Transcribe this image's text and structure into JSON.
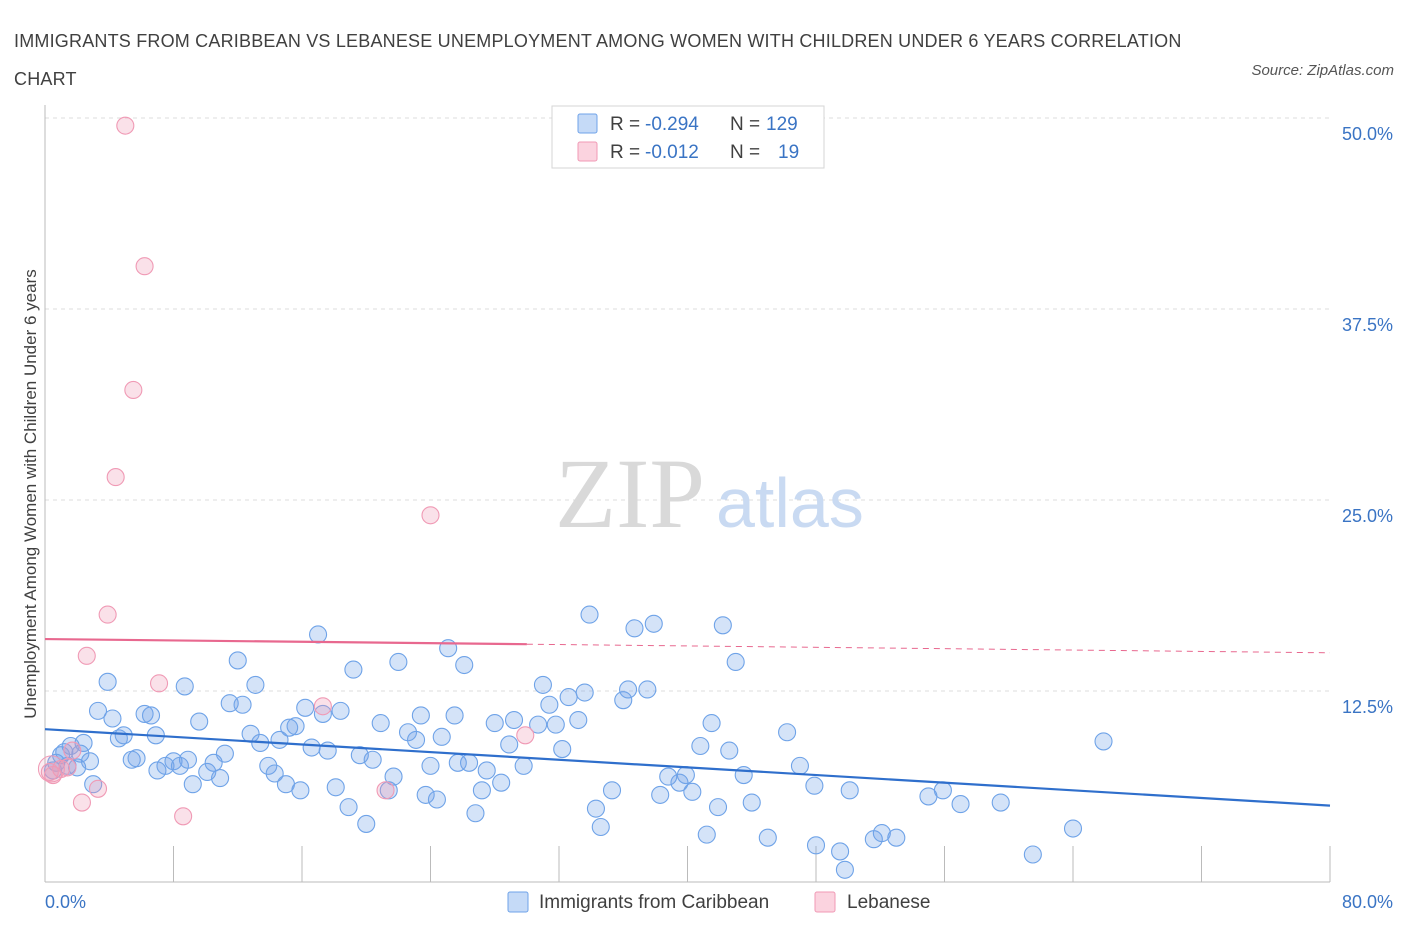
{
  "title": "IMMIGRANTS FROM CARIBBEAN VS LEBANESE UNEMPLOYMENT AMONG WOMEN WITH CHILDREN UNDER 6 YEARS CORRELATION CHART",
  "source": "Source: ZipAtlas.com",
  "watermark": {
    "zip": "ZIP",
    "atlas": "atlas"
  },
  "legend": {
    "rows": [
      {
        "r_label": "R = ",
        "r_value": "-0.294",
        "n_label": "N = ",
        "n_value": "129",
        "color": "#6fa3e8"
      },
      {
        "r_label": "R = ",
        "r_value": "-0.012",
        "n_label": "N = ",
        "n_value": "19",
        "color": "#f09ab5"
      }
    ]
  },
  "bottom_legend": [
    {
      "label": "Immigrants from Caribbean",
      "color": "#6fa3e8"
    },
    {
      "label": "Lebanese",
      "color": "#f09ab5"
    }
  ],
  "colors": {
    "blue": "#6fa3e8",
    "blue_line": "#2f6fcc",
    "pink": "#f09ab5",
    "pink_line": "#e8688f",
    "grid": "#dcdcdc",
    "axis_text": "#3a74c4"
  },
  "chart_data": {
    "type": "scatter",
    "title": "IMMIGRANTS FROM CARIBBEAN VS LEBANESE UNEMPLOYMENT AMONG WOMEN WITH CHILDREN UNDER 6 YEARS CORRELATION CHART",
    "xlabel": "",
    "ylabel": "Unemployment Among Women with Children Under 6 years",
    "xlim": [
      0,
      80
    ],
    "ylim": [
      0,
      50
    ],
    "x_tick_labels": [
      "0.0%",
      "80.0%"
    ],
    "y_ticks": [
      12.5,
      25.0,
      37.5,
      50.0
    ],
    "y_tick_labels": [
      "12.5%",
      "25.0%",
      "37.5%",
      "50.0%"
    ],
    "grid": "horizontal dashed",
    "legend_position": "top-center",
    "series": [
      {
        "name": "Immigrants from Caribbean",
        "color": "#6fa3e8",
        "trend": {
          "x": [
            0,
            80
          ],
          "y": [
            10.0,
            5.0
          ]
        },
        "points": [
          [
            0.5,
            7.3
          ],
          [
            0.7,
            7.8
          ],
          [
            1.0,
            8.3
          ],
          [
            1.2,
            8.5
          ],
          [
            1.4,
            7.6
          ],
          [
            1.6,
            8.9
          ],
          [
            2.0,
            7.5
          ],
          [
            2.2,
            8.4
          ],
          [
            2.4,
            9.1
          ],
          [
            2.8,
            7.9
          ],
          [
            3.0,
            6.4
          ],
          [
            3.3,
            11.2
          ],
          [
            3.9,
            13.1
          ],
          [
            4.2,
            10.7
          ],
          [
            4.6,
            9.4
          ],
          [
            4.9,
            9.6
          ],
          [
            5.4,
            8.0
          ],
          [
            5.7,
            8.1
          ],
          [
            6.2,
            11.0
          ],
          [
            6.6,
            10.9
          ],
          [
            6.9,
            9.6
          ],
          [
            7.0,
            7.3
          ],
          [
            7.5,
            7.6
          ],
          [
            8.0,
            7.9
          ],
          [
            8.4,
            7.6
          ],
          [
            8.7,
            12.8
          ],
          [
            8.9,
            8.0
          ],
          [
            9.2,
            6.4
          ],
          [
            9.6,
            10.5
          ],
          [
            10.1,
            7.2
          ],
          [
            10.5,
            7.8
          ],
          [
            10.9,
            6.8
          ],
          [
            11.2,
            8.4
          ],
          [
            11.5,
            11.7
          ],
          [
            12.0,
            14.5
          ],
          [
            12.3,
            11.6
          ],
          [
            12.8,
            9.7
          ],
          [
            13.1,
            12.9
          ],
          [
            13.4,
            9.1
          ],
          [
            13.9,
            7.6
          ],
          [
            14.3,
            7.1
          ],
          [
            14.6,
            9.3
          ],
          [
            15.0,
            6.4
          ],
          [
            15.2,
            10.1
          ],
          [
            15.6,
            10.2
          ],
          [
            15.9,
            6.0
          ],
          [
            16.2,
            11.4
          ],
          [
            16.6,
            8.8
          ],
          [
            17.0,
            16.2
          ],
          [
            17.3,
            11.0
          ],
          [
            17.6,
            8.6
          ],
          [
            18.1,
            6.2
          ],
          [
            18.4,
            11.2
          ],
          [
            18.9,
            4.9
          ],
          [
            19.2,
            13.9
          ],
          [
            19.6,
            8.3
          ],
          [
            20.0,
            3.8
          ],
          [
            20.4,
            8.0
          ],
          [
            20.9,
            10.4
          ],
          [
            21.4,
            6.0
          ],
          [
            21.7,
            6.9
          ],
          [
            22.0,
            14.4
          ],
          [
            22.6,
            9.8
          ],
          [
            23.1,
            9.3
          ],
          [
            23.4,
            10.9
          ],
          [
            23.7,
            5.7
          ],
          [
            24.0,
            7.6
          ],
          [
            24.4,
            5.4
          ],
          [
            24.7,
            9.5
          ],
          [
            25.1,
            15.3
          ],
          [
            25.5,
            10.9
          ],
          [
            25.7,
            7.8
          ],
          [
            26.1,
            14.2
          ],
          [
            26.4,
            7.8
          ],
          [
            26.8,
            4.5
          ],
          [
            27.2,
            6.0
          ],
          [
            27.5,
            7.3
          ],
          [
            28.0,
            10.4
          ],
          [
            28.4,
            6.5
          ],
          [
            28.9,
            9.0
          ],
          [
            29.2,
            10.6
          ],
          [
            29.8,
            7.6
          ],
          [
            30.7,
            10.3
          ],
          [
            31.0,
            12.9
          ],
          [
            31.4,
            11.6
          ],
          [
            31.8,
            10.3
          ],
          [
            32.2,
            8.7
          ],
          [
            32.6,
            12.1
          ],
          [
            33.2,
            10.6
          ],
          [
            33.6,
            12.4
          ],
          [
            33.9,
            17.5
          ],
          [
            34.3,
            4.8
          ],
          [
            34.6,
            3.6
          ],
          [
            35.3,
            6.0
          ],
          [
            36.0,
            11.9
          ],
          [
            36.3,
            12.6
          ],
          [
            36.7,
            16.6
          ],
          [
            37.5,
            12.6
          ],
          [
            37.9,
            16.9
          ],
          [
            38.3,
            5.7
          ],
          [
            38.8,
            6.9
          ],
          [
            39.5,
            6.5
          ],
          [
            39.9,
            7.0
          ],
          [
            40.3,
            5.9
          ],
          [
            40.8,
            8.9
          ],
          [
            41.2,
            3.1
          ],
          [
            41.5,
            10.4
          ],
          [
            41.9,
            4.9
          ],
          [
            42.2,
            16.8
          ],
          [
            42.6,
            8.6
          ],
          [
            43.0,
            14.4
          ],
          [
            43.5,
            7.0
          ],
          [
            44.0,
            5.2
          ],
          [
            45.0,
            2.9
          ],
          [
            46.2,
            9.8
          ],
          [
            47.0,
            7.6
          ],
          [
            47.9,
            6.3
          ],
          [
            48.0,
            2.4
          ],
          [
            49.5,
            2.0
          ],
          [
            49.8,
            0.8
          ],
          [
            50.1,
            6.0
          ],
          [
            51.6,
            2.8
          ],
          [
            52.1,
            3.2
          ],
          [
            53.0,
            2.9
          ],
          [
            55.0,
            5.6
          ],
          [
            55.9,
            6.0
          ],
          [
            57.0,
            5.1
          ],
          [
            59.5,
            5.2
          ],
          [
            61.5,
            1.8
          ],
          [
            64.0,
            3.5
          ],
          [
            65.9,
            9.2
          ]
        ]
      },
      {
        "name": "Lebanese",
        "color": "#f09ab5",
        "trend": {
          "x": [
            0,
            80
          ],
          "y": [
            15.9,
            15.0
          ]
        },
        "trend_solid_to_x": 30,
        "points": [
          [
            0.3,
            7.2
          ],
          [
            0.5,
            7.0
          ],
          [
            1.0,
            7.4
          ],
          [
            1.4,
            7.5
          ],
          [
            1.7,
            8.6
          ],
          [
            2.3,
            5.2
          ],
          [
            2.6,
            14.8
          ],
          [
            3.3,
            6.1
          ],
          [
            3.9,
            17.5
          ],
          [
            4.4,
            26.5
          ],
          [
            5.0,
            49.5
          ],
          [
            5.5,
            32.2
          ],
          [
            6.2,
            40.3
          ],
          [
            7.1,
            13.0
          ],
          [
            8.6,
            4.3
          ],
          [
            17.3,
            11.5
          ],
          [
            21.2,
            6.0
          ],
          [
            24.0,
            24.0
          ],
          [
            29.9,
            9.6
          ]
        ]
      }
    ]
  }
}
